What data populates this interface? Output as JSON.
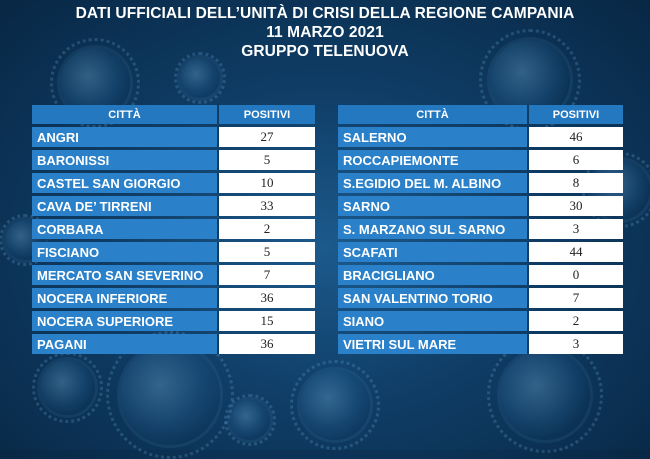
{
  "header": {
    "line1": "DATI UFFICIALI DELL’UNITÀ DI CRISI DELLA REGIONE CAMPANIA",
    "line2": "11 MARZO 2021",
    "line3": "GRUPPO TELENUOVA"
  },
  "columns": {
    "city": "CITTÀ",
    "positives": "POSITIVI"
  },
  "left_table": [
    {
      "city": "ANGRI",
      "positives": "27"
    },
    {
      "city": "BARONISSI",
      "positives": "5"
    },
    {
      "city": "CASTEL SAN GIORGIO",
      "positives": "10"
    },
    {
      "city": "CAVA DE’ TIRRENI",
      "positives": "33"
    },
    {
      "city": "CORBARA",
      "positives": "2"
    },
    {
      "city": "FISCIANO",
      "positives": "5"
    },
    {
      "city": "MERCATO SAN SEVERINO",
      "positives": "7"
    },
    {
      "city": "NOCERA INFERIORE",
      "positives": "36"
    },
    {
      "city": "NOCERA SUPERIORE",
      "positives": "15"
    },
    {
      "city": "PAGANI",
      "positives": "36"
    }
  ],
  "right_table": [
    {
      "city": "SALERNO",
      "positives": "46"
    },
    {
      "city": "ROCCAPIEMONTE",
      "positives": "6"
    },
    {
      "city": "S.EGIDIO DEL M. ALBINO",
      "positives": "8"
    },
    {
      "city": "SARNO",
      "positives": "30"
    },
    {
      "city": "S. MARZANO SUL SARNO",
      "positives": "3"
    },
    {
      "city": "SCAFATI",
      "positives": "44"
    },
    {
      "city": "BRACIGLIANO",
      "positives": "0"
    },
    {
      "city": "SAN VALENTINO TORIO",
      "positives": "7"
    },
    {
      "city": "SIANO",
      "positives": "2"
    },
    {
      "city": "VIETRI SUL MARE",
      "positives": "3"
    }
  ],
  "colors": {
    "background": "#0f3d66",
    "city_cell": "#2a80c9",
    "header_cell": "#2478c0",
    "value_cell": "#ffffff"
  }
}
